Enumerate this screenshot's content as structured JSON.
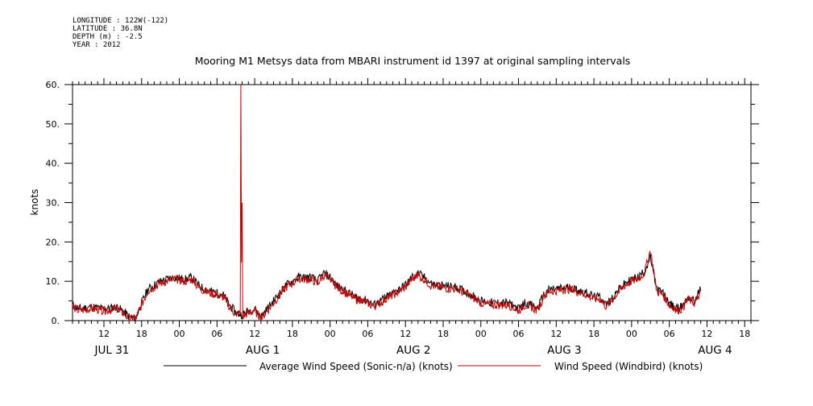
{
  "header": {
    "longitude": "LONGITUDE : 122W(-122)",
    "latitude": "LATITUDE : 36.8N",
    "depth": "DEPTH (m) : -2.5",
    "year": "YEAR : 2012"
  },
  "chart_data": {
    "type": "line",
    "title": "Mooring M1 Metsys data from MBARI instrument id 1397 at original sampling intervals",
    "ylabel": "knots",
    "ylim": [
      0,
      60
    ],
    "y_ticks": [
      0,
      10,
      20,
      30,
      40,
      50,
      60
    ],
    "y_tick_labels": [
      "0.",
      "10.",
      "20.",
      "30.",
      "40.",
      "50.",
      "60."
    ],
    "x_range_hours": [
      7,
      115
    ],
    "x_tick_labels": [
      "12",
      "18",
      "00",
      "06",
      "12",
      "18",
      "00",
      "06",
      "12",
      "18",
      "00",
      "06",
      "12",
      "18",
      "00",
      "06",
      "12",
      "18"
    ],
    "day_labels": [
      "JUL 31",
      "AUG  1",
      "AUG  2",
      "AUG  3",
      "AUG  4"
    ],
    "grid": false,
    "legend_position": "bottom",
    "series": [
      {
        "name": "Average Wind Speed (Sonic-n/a) (knots)",
        "color": "#000000",
        "keypoints": [
          [
            7,
            4
          ],
          [
            8,
            3
          ],
          [
            10,
            3.5
          ],
          [
            12,
            3
          ],
          [
            14,
            3.5
          ],
          [
            15,
            2.5
          ],
          [
            16,
            1
          ],
          [
            17,
            0.5
          ],
          [
            18,
            4.5
          ],
          [
            19,
            8
          ],
          [
            21,
            10
          ],
          [
            23,
            11
          ],
          [
            25,
            10.5
          ],
          [
            26,
            11
          ],
          [
            27,
            9
          ],
          [
            28,
            8
          ],
          [
            29,
            7.5
          ],
          [
            30,
            7
          ],
          [
            31,
            6.5
          ],
          [
            32,
            4
          ],
          [
            33,
            2
          ],
          [
            34,
            1.5
          ],
          [
            35,
            2.5
          ],
          [
            36,
            3
          ],
          [
            37,
            1
          ],
          [
            38,
            3
          ],
          [
            39,
            5
          ],
          [
            40,
            7
          ],
          [
            41,
            9
          ],
          [
            43,
            11
          ],
          [
            45,
            11
          ],
          [
            46,
            10
          ],
          [
            47,
            12
          ],
          [
            48,
            11
          ],
          [
            49,
            9
          ],
          [
            50,
            8
          ],
          [
            52,
            6
          ],
          [
            54,
            5
          ],
          [
            55,
            4
          ],
          [
            56,
            5
          ],
          [
            58,
            7
          ],
          [
            60,
            9
          ],
          [
            61,
            11
          ],
          [
            62,
            12
          ],
          [
            63,
            11
          ],
          [
            64,
            9.5
          ],
          [
            65,
            9
          ],
          [
            68,
            8.5
          ],
          [
            70,
            7
          ],
          [
            72,
            5
          ],
          [
            74,
            4.5
          ],
          [
            76,
            4.5
          ],
          [
            77,
            4
          ],
          [
            78,
            3
          ],
          [
            79,
            4.5
          ],
          [
            80,
            4
          ],
          [
            81,
            3
          ],
          [
            82,
            6.5
          ],
          [
            83,
            8
          ],
          [
            84,
            8
          ],
          [
            86,
            8.5
          ],
          [
            88,
            7.5
          ],
          [
            89,
            7
          ],
          [
            90,
            6
          ],
          [
            91,
            6
          ],
          [
            92,
            4
          ],
          [
            93,
            6
          ],
          [
            94,
            8
          ],
          [
            95,
            9.5
          ],
          [
            96,
            10.5
          ],
          [
            97,
            11
          ],
          [
            98,
            12.5
          ],
          [
            99,
            16
          ],
          [
            100,
            8
          ],
          [
            101,
            7
          ],
          [
            102,
            4.5
          ],
          [
            103,
            3
          ],
          [
            104,
            3.5
          ],
          [
            105,
            6
          ],
          [
            106,
            5
          ],
          [
            107,
            8
          ]
        ]
      },
      {
        "name": "Wind Speed (Windbird) (knots)",
        "color": "#cc0000",
        "keypoints": [
          [
            7,
            3.5
          ],
          [
            8,
            2.5
          ],
          [
            10,
            3
          ],
          [
            12,
            2.5
          ],
          [
            14,
            3
          ],
          [
            15,
            2
          ],
          [
            16,
            0.5
          ],
          [
            17,
            0.3
          ],
          [
            18,
            4
          ],
          [
            19,
            7.5
          ],
          [
            21,
            9.5
          ],
          [
            23,
            10.5
          ],
          [
            25,
            10
          ],
          [
            26,
            10.5
          ],
          [
            27,
            8.5
          ],
          [
            28,
            7.5
          ],
          [
            29,
            7
          ],
          [
            30,
            6.5
          ],
          [
            31,
            6
          ],
          [
            32,
            3.5
          ],
          [
            33,
            1.5
          ],
          [
            33.7,
            2
          ],
          [
            33.8,
            60
          ],
          [
            33.9,
            15
          ],
          [
            34.0,
            30
          ],
          [
            34.1,
            1
          ],
          [
            35,
            2
          ],
          [
            36,
            2.5
          ],
          [
            37,
            0.5
          ],
          [
            38,
            2.5
          ],
          [
            39,
            4.5
          ],
          [
            40,
            6.5
          ],
          [
            41,
            8.5
          ],
          [
            43,
            10.5
          ],
          [
            45,
            10.5
          ],
          [
            46,
            9.5
          ],
          [
            47,
            11.5
          ],
          [
            48,
            10.5
          ],
          [
            49,
            8.5
          ],
          [
            50,
            7.5
          ],
          [
            52,
            5.5
          ],
          [
            54,
            4.5
          ],
          [
            55,
            3.5
          ],
          [
            56,
            4.5
          ],
          [
            58,
            6.5
          ],
          [
            60,
            8.5
          ],
          [
            61,
            10.5
          ],
          [
            62,
            11.5
          ],
          [
            63,
            10.5
          ],
          [
            64,
            9
          ],
          [
            65,
            8.5
          ],
          [
            68,
            8
          ],
          [
            70,
            6.5
          ],
          [
            72,
            4.5
          ],
          [
            74,
            4
          ],
          [
            76,
            4
          ],
          [
            77,
            3.5
          ],
          [
            78,
            2.5
          ],
          [
            79,
            4
          ],
          [
            80,
            3.5
          ],
          [
            81,
            2.5
          ],
          [
            82,
            6
          ],
          [
            83,
            7.5
          ],
          [
            84,
            7.5
          ],
          [
            86,
            8
          ],
          [
            88,
            7
          ],
          [
            89,
            6.5
          ],
          [
            90,
            5.5
          ],
          [
            91,
            5.5
          ],
          [
            92,
            3.5
          ],
          [
            93,
            5.5
          ],
          [
            94,
            7.5
          ],
          [
            95,
            9
          ],
          [
            96,
            10
          ],
          [
            97,
            10.5
          ],
          [
            98,
            12
          ],
          [
            99,
            18
          ],
          [
            100,
            7.5
          ],
          [
            101,
            6.5
          ],
          [
            102,
            4
          ],
          [
            103,
            2.5
          ],
          [
            104,
            3
          ],
          [
            105,
            5.5
          ],
          [
            106,
            4.5
          ],
          [
            107,
            7
          ]
        ]
      }
    ]
  }
}
